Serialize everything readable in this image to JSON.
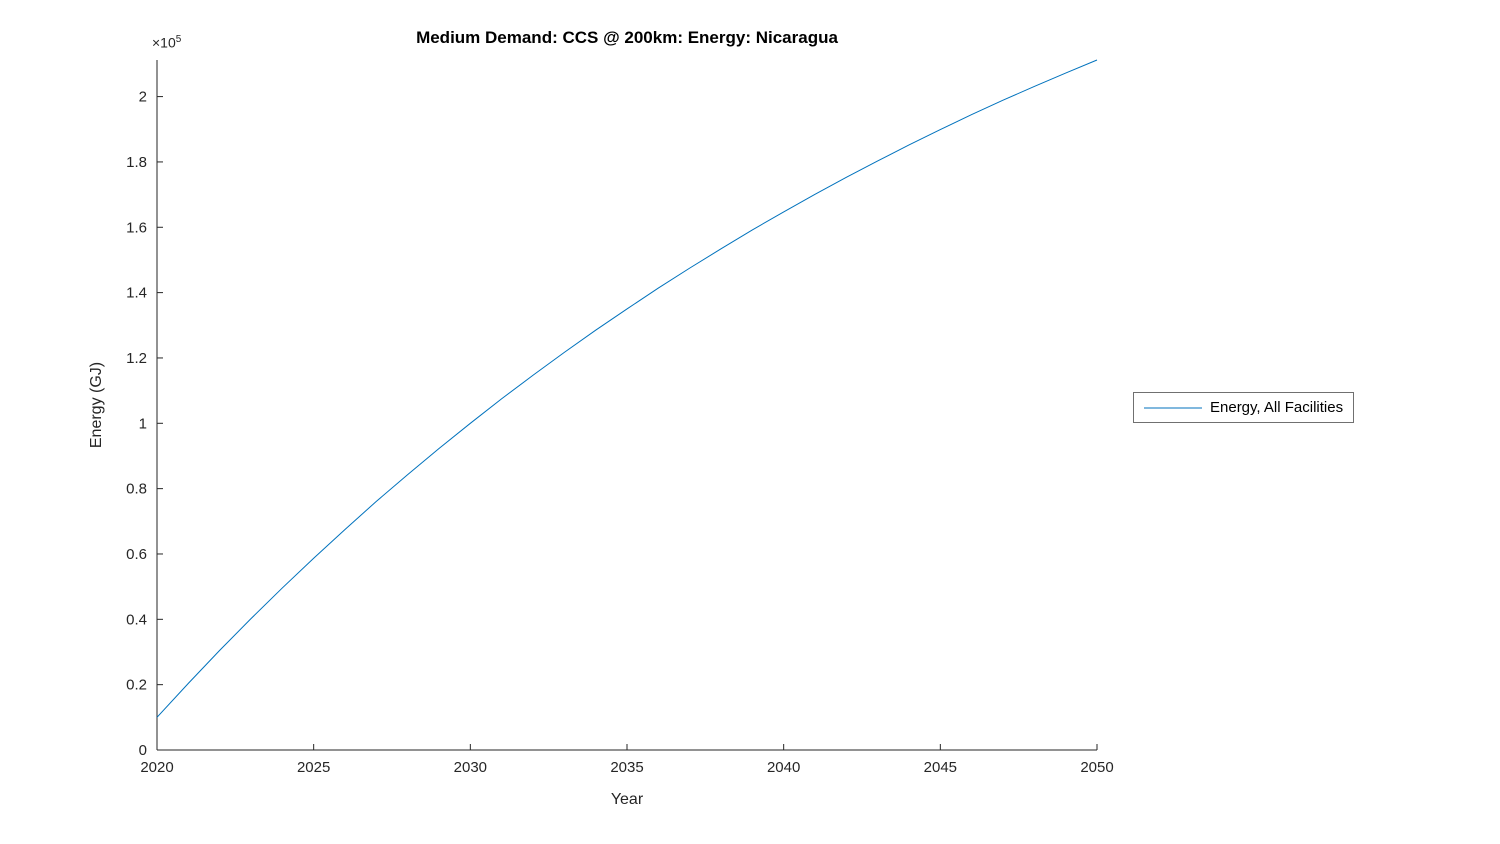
{
  "figure": {
    "title": "Medium Demand: CCS @ 200km: Energy: Nicaragua",
    "xlabel": "Year",
    "ylabel": "Energy (GJ)",
    "y_multiplier_base": "×10",
    "y_multiplier_exponent": "5",
    "legend": {
      "entries": [
        {
          "label": "Energy, All Facilities",
          "color": "#0072BD"
        }
      ]
    }
  },
  "chart_data": {
    "type": "line",
    "title": "Medium Demand: CCS @ 200km: Energy: Nicaragua",
    "xlabel": "Year",
    "ylabel": "Energy (GJ)",
    "y_unit_multiplier": "×10^5",
    "xlim": [
      2020,
      2050
    ],
    "ylim": [
      0,
      211200
    ],
    "grid": false,
    "legend_position": "right-outside",
    "x_ticks": [
      2020,
      2025,
      2030,
      2035,
      2040,
      2045,
      2050
    ],
    "y_ticks": [
      0,
      20000,
      40000,
      60000,
      80000,
      100000,
      120000,
      140000,
      160000,
      180000,
      200000
    ],
    "y_tick_labels": [
      "0",
      "0.2",
      "0.4",
      "0.6",
      "0.8",
      "1",
      "1.2",
      "1.4",
      "1.6",
      "1.8",
      "2"
    ],
    "axis_color": "#262626",
    "series": [
      {
        "name": "Energy, All Facilities",
        "color": "#0072BD",
        "x": [
          2020,
          2021,
          2022,
          2023,
          2024,
          2025,
          2026,
          2027,
          2028,
          2029,
          2030,
          2031,
          2032,
          2033,
          2034,
          2035,
          2036,
          2037,
          2038,
          2039,
          2040,
          2041,
          2042,
          2043,
          2044,
          2045,
          2046,
          2047,
          2048,
          2049,
          2050
        ],
        "y": [
          10000,
          20400,
          30500,
          40200,
          49600,
          58700,
          67500,
          76100,
          84300,
          92300,
          100000,
          107500,
          114700,
          121700,
          128500,
          135000,
          141400,
          147500,
          153400,
          159200,
          164700,
          170100,
          175300,
          180300,
          185200,
          189900,
          194500,
          198900,
          203100,
          207200,
          211200
        ]
      }
    ]
  }
}
